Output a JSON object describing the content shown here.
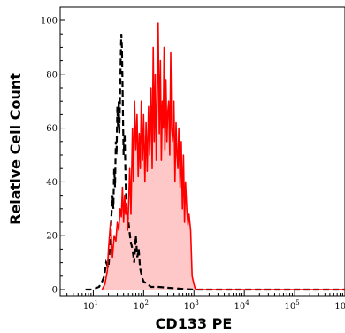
{
  "chart_data": {
    "type": "area",
    "title": "",
    "xlabel": "CD133 PE",
    "ylabel": "Relative Cell Count",
    "x_scale": "log",
    "xlim": [
      2.2,
      1000000
    ],
    "ylim": [
      0,
      104
    ],
    "yticks": [
      0,
      20,
      40,
      60,
      80,
      100
    ],
    "ytick_labels": [
      "0",
      "20",
      "40",
      "60",
      "80",
      "100"
    ],
    "xticks": [
      10,
      100,
      1000,
      10000,
      100000,
      1000000
    ],
    "xtick_labels": [
      {
        "base": "10",
        "exp": "1"
      },
      {
        "base": "10",
        "exp": "2"
      },
      {
        "base": "10",
        "exp": "3"
      },
      {
        "base": "10",
        "exp": "4"
      },
      {
        "base": "10",
        "exp": "5"
      },
      {
        "base": "10",
        "exp": "6"
      }
    ],
    "grid": false,
    "legend": "none",
    "series": [
      {
        "style": "dashed",
        "color": "#000000",
        "x": [
          7,
          9,
          11,
          13,
          15,
          16.5,
          18,
          20,
          22,
          23,
          24,
          25,
          26,
          27,
          28,
          29,
          30,
          31,
          32,
          33,
          34,
          35,
          36,
          37,
          38,
          39,
          40,
          42,
          44,
          46,
          50,
          55,
          60,
          65,
          70,
          75,
          80,
          85,
          90,
          95,
          100,
          120,
          140,
          200,
          400,
          1000,
          10000,
          100000,
          1000000
        ],
        "y": [
          0,
          0,
          0.5,
          1,
          3,
          5,
          10,
          8,
          20,
          28,
          35,
          30,
          45,
          38,
          55,
          50,
          68,
          60,
          70,
          58,
          72,
          85,
          95,
          90,
          78,
          62,
          50,
          58,
          40,
          30,
          25,
          18,
          15,
          10,
          20,
          12,
          15,
          8,
          6,
          4,
          3,
          2,
          1,
          1,
          0.5,
          0,
          0,
          0,
          0
        ]
      },
      {
        "style": "solid-fill",
        "color": "#ff0000",
        "fill": "#ffc8c8",
        "x": [
          15,
          17,
          19,
          20,
          22,
          24,
          26,
          28,
          30,
          32,
          34,
          36,
          38,
          40,
          42,
          44,
          46,
          48,
          50,
          53,
          56,
          60,
          63,
          66,
          70,
          74,
          78,
          82,
          86,
          90,
          95,
          100,
          106,
          112,
          118,
          125,
          132,
          140,
          148,
          155,
          162,
          170,
          178,
          186,
          195,
          205,
          215,
          225,
          235,
          245,
          255,
          265,
          278,
          290,
          300,
          315,
          330,
          345,
          360,
          380,
          400,
          420,
          440,
          460,
          480,
          500,
          530,
          560,
          590,
          620,
          650,
          680,
          720,
          760,
          800,
          860,
          920,
          1000,
          1050,
          1100,
          1200,
          1500,
          2000,
          5000,
          10000,
          100000,
          1000000
        ],
        "y": [
          0,
          2,
          7,
          15,
          25,
          12,
          20,
          18,
          25,
          22,
          30,
          27,
          38,
          25,
          35,
          28,
          32,
          22,
          30,
          45,
          28,
          60,
          40,
          70,
          52,
          65,
          42,
          58,
          45,
          70,
          48,
          65,
          40,
          62,
          44,
          68,
          50,
          75,
          45,
          90,
          55,
          80,
          48,
          72,
          99,
          58,
          85,
          48,
          70,
          60,
          90,
          52,
          78,
          55,
          65,
          70,
          50,
          88,
          60,
          55,
          70,
          40,
          62,
          50,
          45,
          60,
          38,
          55,
          30,
          50,
          25,
          40,
          30,
          24,
          28,
          22,
          5,
          2,
          0.5,
          0,
          0,
          0,
          0,
          0,
          0,
          0,
          0
        ]
      }
    ]
  }
}
